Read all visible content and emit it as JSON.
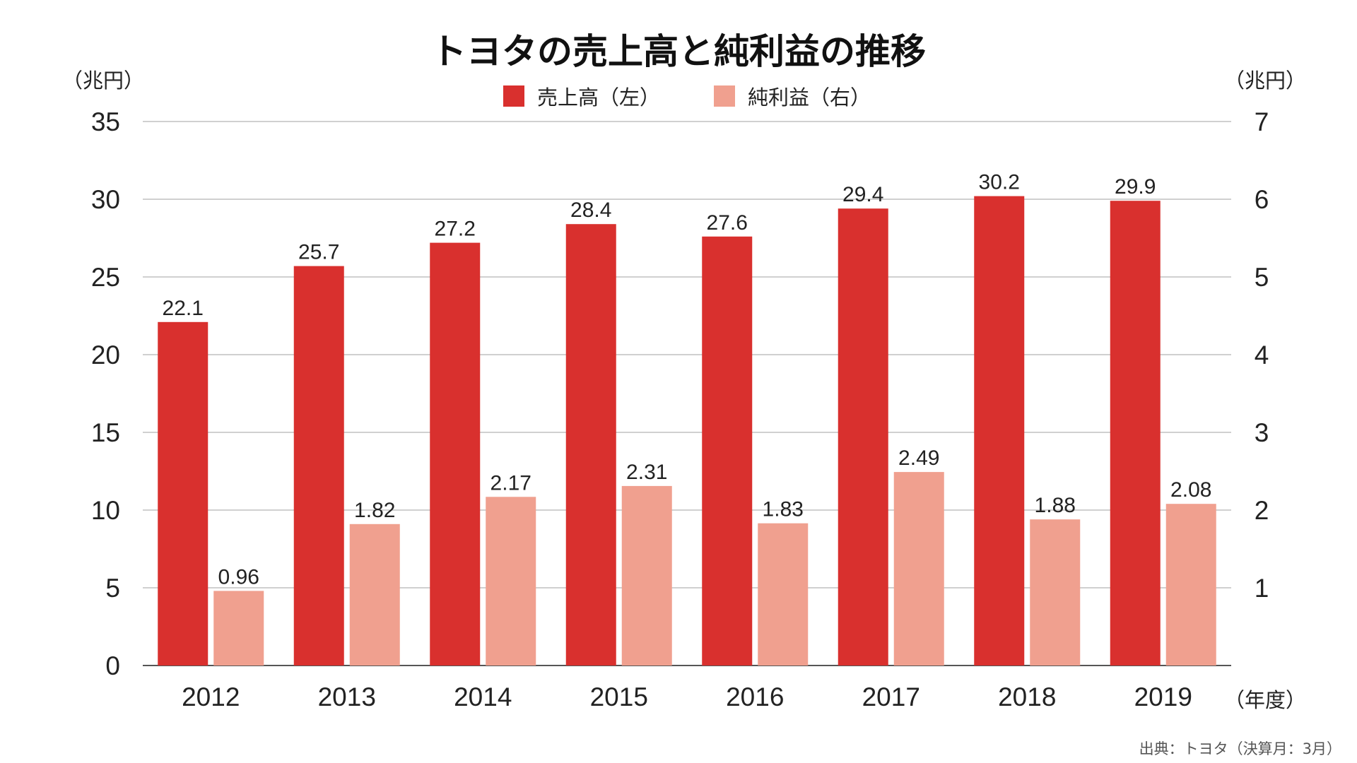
{
  "chart_data": {
    "type": "bar",
    "title": "トヨタの売上高と純利益の推移",
    "left_unit": "（兆円）",
    "right_unit": "（兆円）",
    "x_unit": "（年度）",
    "source": "出典：トヨタ（決算月：3月）",
    "categories": [
      "2012",
      "2013",
      "2014",
      "2015",
      "2016",
      "2017",
      "2018",
      "2019"
    ],
    "left_axis": {
      "min": 0,
      "max": 35,
      "ticks": [
        "0",
        "5",
        "10",
        "15",
        "20",
        "25",
        "30",
        "35"
      ]
    },
    "right_axis": {
      "min": 0,
      "max": 7,
      "ticks": [
        "1",
        "2",
        "3",
        "4",
        "5",
        "6",
        "7"
      ]
    },
    "grid": true,
    "legend_position": "top-center",
    "series": [
      {
        "name": "売上高（左）",
        "axis": "left",
        "color": "#d9302e",
        "values": [
          22.1,
          25.7,
          27.2,
          28.4,
          27.6,
          29.4,
          30.2,
          29.9
        ],
        "labels": [
          "22.1",
          "25.7",
          "27.2",
          "28.4",
          "27.6",
          "29.4",
          "30.2",
          "29.9"
        ]
      },
      {
        "name": "純利益（右）",
        "axis": "right",
        "color": "#f0a08f",
        "values": [
          0.96,
          1.82,
          2.17,
          2.31,
          1.83,
          2.49,
          1.88,
          2.08
        ],
        "labels": [
          "0.96",
          "1.82",
          "2.17",
          "2.31",
          "1.83",
          "2.49",
          "1.88",
          "2.08"
        ]
      }
    ]
  }
}
